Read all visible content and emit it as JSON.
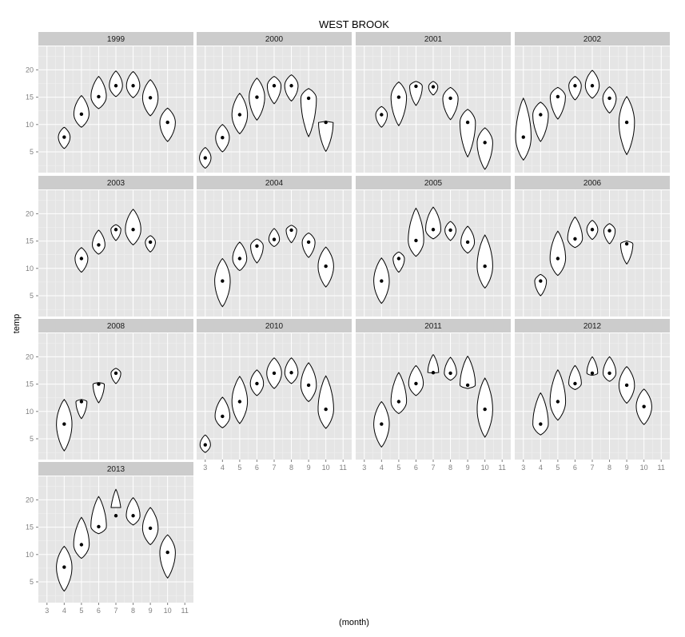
{
  "chart_data": {
    "type": "violin",
    "title": "WEST BROOK",
    "xlabel": "(month)",
    "ylabel": "temp",
    "xlim": [
      2.5,
      11.5
    ],
    "ylim": [
      1.2,
      24.3
    ],
    "x_ticks": [
      3,
      4,
      5,
      6,
      7,
      8,
      9,
      10,
      11
    ],
    "y_ticks": [
      5,
      10,
      15,
      20
    ],
    "grid": true,
    "panels": [
      {
        "label": "1999",
        "violins": [
          {
            "month": 4,
            "min": 5.6,
            "max": 9.5,
            "mean": 7.7
          },
          {
            "month": 5,
            "min": 9.5,
            "max": 15.3,
            "mean": 11.9
          },
          {
            "month": 6,
            "min": 12.9,
            "max": 18.8,
            "mean": 15.1
          },
          {
            "month": 7,
            "min": 15.1,
            "max": 19.8,
            "mean": 17.1
          },
          {
            "month": 8,
            "min": 14.9,
            "max": 19.7,
            "mean": 17.1
          },
          {
            "month": 9,
            "min": 11.6,
            "max": 18.2,
            "mean": 14.9
          },
          {
            "month": 10,
            "min": 6.9,
            "max": 13.0,
            "mean": 10.4
          }
        ]
      },
      {
        "label": "2000",
        "violins": [
          {
            "month": 3,
            "min": 2.0,
            "max": 5.8,
            "mean": 3.9
          },
          {
            "month": 4,
            "min": 5.0,
            "max": 10.0,
            "mean": 7.6
          },
          {
            "month": 5,
            "min": 8.3,
            "max": 15.7,
            "mean": 11.8
          },
          {
            "month": 6,
            "min": 10.8,
            "max": 18.5,
            "mean": 15.0
          },
          {
            "month": 7,
            "min": 13.8,
            "max": 18.8,
            "mean": 17.1
          },
          {
            "month": 8,
            "min": 14.3,
            "max": 19.1,
            "mean": 17.1
          },
          {
            "month": 9,
            "min": 7.8,
            "max": 16.6,
            "mean": 14.8
          },
          {
            "month": 10,
            "min": 5.1,
            "max": 10.6,
            "mean": 10.4
          }
        ]
      },
      {
        "label": "2001",
        "violins": [
          {
            "month": 4,
            "min": 9.5,
            "max": 13.3,
            "mean": 11.8
          },
          {
            "month": 5,
            "min": 9.8,
            "max": 17.8,
            "mean": 15.0
          },
          {
            "month": 6,
            "min": 13.5,
            "max": 17.9,
            "mean": 17.0
          },
          {
            "month": 7,
            "min": 15.4,
            "max": 17.9,
            "mean": 16.9
          },
          {
            "month": 8,
            "min": 10.9,
            "max": 16.8,
            "mean": 14.8
          },
          {
            "month": 9,
            "min": 4.1,
            "max": 12.8,
            "mean": 10.4
          },
          {
            "month": 10,
            "min": 1.8,
            "max": 9.4,
            "mean": 6.7
          }
        ]
      },
      {
        "label": "2002",
        "violins": [
          {
            "month": 3,
            "min": 3.5,
            "max": 14.8,
            "mean": 7.7
          },
          {
            "month": 4,
            "min": 6.9,
            "max": 14.1,
            "mean": 11.8
          },
          {
            "month": 5,
            "min": 11.0,
            "max": 16.8,
            "mean": 15.1
          },
          {
            "month": 6,
            "min": 14.5,
            "max": 18.8,
            "mean": 17.1
          },
          {
            "month": 7,
            "min": 14.8,
            "max": 19.9,
            "mean": 17.1
          },
          {
            "month": 8,
            "min": 12.1,
            "max": 16.9,
            "mean": 14.8
          },
          {
            "month": 9,
            "min": 4.5,
            "max": 15.1,
            "mean": 10.4
          }
        ]
      },
      {
        "label": "2003",
        "violins": [
          {
            "month": 5,
            "min": 9.3,
            "max": 13.8,
            "mean": 11.8
          },
          {
            "month": 6,
            "min": 12.6,
            "max": 17.0,
            "mean": 14.3
          },
          {
            "month": 7,
            "min": 15.1,
            "max": 18.0,
            "mean": 17.1
          },
          {
            "month": 8,
            "min": 14.3,
            "max": 20.8,
            "mean": 17.1
          },
          {
            "month": 9,
            "min": 13.0,
            "max": 16.0,
            "mean": 14.8
          }
        ]
      },
      {
        "label": "2004",
        "violins": [
          {
            "month": 4,
            "min": 3.0,
            "max": 11.8,
            "mean": 7.7
          },
          {
            "month": 5,
            "min": 9.6,
            "max": 14.8,
            "mean": 11.8
          },
          {
            "month": 6,
            "min": 11.0,
            "max": 15.4,
            "mean": 14.1
          },
          {
            "month": 7,
            "min": 14.0,
            "max": 17.3,
            "mean": 15.3
          },
          {
            "month": 8,
            "min": 14.7,
            "max": 17.9,
            "mean": 17.0
          },
          {
            "month": 9,
            "min": 12.0,
            "max": 16.5,
            "mean": 14.8
          },
          {
            "month": 10,
            "min": 6.6,
            "max": 13.9,
            "mean": 10.4
          }
        ]
      },
      {
        "label": "2005",
        "violins": [
          {
            "month": 4,
            "min": 3.6,
            "max": 11.9,
            "mean": 7.7
          },
          {
            "month": 5,
            "min": 9.3,
            "max": 13.0,
            "mean": 11.8
          },
          {
            "month": 6,
            "min": 12.2,
            "max": 21.0,
            "mean": 15.1
          },
          {
            "month": 7,
            "min": 15.4,
            "max": 21.2,
            "mean": 17.1
          },
          {
            "month": 8,
            "min": 15.1,
            "max": 18.6,
            "mean": 17.0
          },
          {
            "month": 9,
            "min": 12.8,
            "max": 17.7,
            "mean": 14.8
          },
          {
            "month": 10,
            "min": 6.4,
            "max": 16.1,
            "mean": 10.4
          }
        ]
      },
      {
        "label": "2006",
        "violins": [
          {
            "month": 4,
            "min": 5.0,
            "max": 8.9,
            "mean": 7.7
          },
          {
            "month": 5,
            "min": 8.7,
            "max": 16.8,
            "mean": 11.8
          },
          {
            "month": 6,
            "min": 13.8,
            "max": 19.4,
            "mean": 15.4
          },
          {
            "month": 7,
            "min": 15.3,
            "max": 18.8,
            "mean": 17.1
          },
          {
            "month": 8,
            "min": 14.5,
            "max": 18.2,
            "mean": 16.9
          },
          {
            "month": 9,
            "min": 10.8,
            "max": 15.0,
            "mean": 14.5
          }
        ]
      },
      {
        "label": "2008",
        "violins": [
          {
            "month": 4,
            "min": 2.8,
            "max": 12.2,
            "mean": 7.7
          },
          {
            "month": 5,
            "min": 8.7,
            "max": 12.2,
            "mean": 11.8
          },
          {
            "month": 6,
            "min": 11.6,
            "max": 15.3,
            "mean": 15.0
          },
          {
            "month": 7,
            "min": 15.1,
            "max": 17.9,
            "mean": 17.0
          }
        ]
      },
      {
        "label": "2010",
        "violins": [
          {
            "month": 3,
            "min": 2.5,
            "max": 5.7,
            "mean": 3.9
          },
          {
            "month": 4,
            "min": 7.0,
            "max": 12.6,
            "mean": 9.1
          },
          {
            "month": 5,
            "min": 7.8,
            "max": 16.4,
            "mean": 11.8
          },
          {
            "month": 6,
            "min": 12.9,
            "max": 17.6,
            "mean": 15.1
          },
          {
            "month": 7,
            "min": 14.2,
            "max": 19.8,
            "mean": 17.0
          },
          {
            "month": 8,
            "min": 15.1,
            "max": 19.8,
            "mean": 17.1
          },
          {
            "month": 9,
            "min": 11.8,
            "max": 18.9,
            "mean": 14.8
          },
          {
            "month": 10,
            "min": 6.9,
            "max": 16.5,
            "mean": 10.4
          }
        ]
      },
      {
        "label": "2011",
        "violins": [
          {
            "month": 4,
            "min": 3.5,
            "max": 11.8,
            "mean": 7.7
          },
          {
            "month": 5,
            "min": 9.6,
            "max": 17.1,
            "mean": 11.8
          },
          {
            "month": 6,
            "min": 12.9,
            "max": 18.4,
            "mean": 15.1
          },
          {
            "month": 7,
            "min": 17.0,
            "max": 20.4,
            "mean": 17.1
          },
          {
            "month": 8,
            "min": 15.7,
            "max": 19.9,
            "mean": 17.0
          },
          {
            "month": 9,
            "min": 14.2,
            "max": 20.1,
            "mean": 14.8
          },
          {
            "month": 10,
            "min": 5.3,
            "max": 16.1,
            "mean": 10.4
          }
        ]
      },
      {
        "label": "2012",
        "violins": [
          {
            "month": 4,
            "min": 5.7,
            "max": 13.4,
            "mean": 7.7
          },
          {
            "month": 5,
            "min": 8.4,
            "max": 17.6,
            "mean": 11.8
          },
          {
            "month": 6,
            "min": 14.0,
            "max": 18.4,
            "mean": 15.1
          },
          {
            "month": 7,
            "min": 16.6,
            "max": 20.0,
            "mean": 17.0
          },
          {
            "month": 8,
            "min": 15.5,
            "max": 20.0,
            "mean": 17.0
          },
          {
            "month": 9,
            "min": 11.5,
            "max": 18.2,
            "mean": 14.8
          },
          {
            "month": 10,
            "min": 7.6,
            "max": 14.1,
            "mean": 10.9
          }
        ]
      },
      {
        "label": "2013",
        "violins": [
          {
            "month": 4,
            "min": 3.3,
            "max": 11.5,
            "mean": 7.7
          },
          {
            "month": 5,
            "min": 9.3,
            "max": 16.8,
            "mean": 11.8
          },
          {
            "month": 6,
            "min": 13.8,
            "max": 20.6,
            "mean": 15.1
          },
          {
            "month": 7,
            "min": 18.6,
            "max": 21.9,
            "mean": 17.1
          },
          {
            "month": 8,
            "min": 15.4,
            "max": 20.4,
            "mean": 17.1
          },
          {
            "month": 9,
            "min": 11.8,
            "max": 18.6,
            "mean": 14.8
          },
          {
            "month": 10,
            "min": 5.7,
            "max": 13.6,
            "mean": 10.4
          }
        ]
      }
    ]
  }
}
